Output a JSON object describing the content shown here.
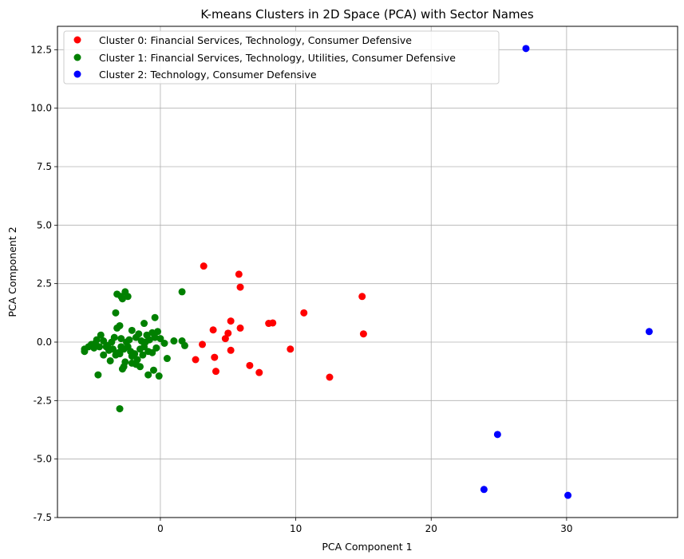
{
  "chart_data": {
    "type": "scatter",
    "title": "K-means Clusters in 2D Space (PCA) with Sector Names",
    "xlabel": "PCA Component 1",
    "ylabel": "PCA Component 2",
    "xlim": [
      -7.6,
      38.2
    ],
    "ylim": [
      -7.5,
      13.5
    ],
    "xticks": [
      0,
      10,
      20,
      30
    ],
    "yticks": [
      -7.5,
      -5.0,
      -2.5,
      0.0,
      2.5,
      5.0,
      7.5,
      10.0,
      12.5
    ],
    "grid": true,
    "legend_position": "top-left",
    "series": [
      {
        "name": "Cluster 0: Financial Services, Technology, Consumer Defensive",
        "color": "#ff0000",
        "points": [
          [
            3.2,
            3.25
          ],
          [
            5.8,
            2.9
          ],
          [
            5.9,
            2.35
          ],
          [
            14.9,
            1.95
          ],
          [
            10.6,
            1.25
          ],
          [
            8.3,
            0.82
          ],
          [
            8.0,
            0.8
          ],
          [
            5.2,
            0.9
          ],
          [
            5.9,
            0.6
          ],
          [
            3.9,
            0.52
          ],
          [
            5.0,
            0.38
          ],
          [
            15.0,
            0.35
          ],
          [
            4.8,
            0.15
          ],
          [
            3.1,
            -0.1
          ],
          [
            9.6,
            -0.3
          ],
          [
            5.2,
            -0.35
          ],
          [
            2.6,
            -0.75
          ],
          [
            4.0,
            -0.65
          ],
          [
            6.6,
            -1.0
          ],
          [
            4.1,
            -1.25
          ],
          [
            7.3,
            -1.3
          ],
          [
            12.5,
            -1.5
          ]
        ]
      },
      {
        "name": "Cluster 1: Financial Services, Technology, Utilities, Consumer Defensive",
        "color": "#008000",
        "points": [
          [
            -3.2,
            2.05
          ],
          [
            -2.6,
            2.15
          ],
          [
            -2.9,
            1.95
          ],
          [
            -2.4,
            1.95
          ],
          [
            -2.8,
            1.85
          ],
          [
            1.6,
            2.15
          ],
          [
            -3.3,
            1.25
          ],
          [
            -0.4,
            1.05
          ],
          [
            -3.0,
            0.7
          ],
          [
            -3.2,
            0.6
          ],
          [
            -1.2,
            0.8
          ],
          [
            -2.1,
            0.5
          ],
          [
            -1.6,
            0.35
          ],
          [
            -0.2,
            0.45
          ],
          [
            -4.4,
            0.3
          ],
          [
            -0.6,
            0.4
          ],
          [
            -1.0,
            0.3
          ],
          [
            -1.8,
            0.2
          ],
          [
            -3.4,
            0.2
          ],
          [
            -2.9,
            0.15
          ],
          [
            -4.7,
            0.1
          ],
          [
            -4.2,
            0.05
          ],
          [
            -3.6,
            0.0
          ],
          [
            -2.5,
            0.0
          ],
          [
            -1.4,
            0.05
          ],
          [
            -0.8,
            0.1
          ],
          [
            0.0,
            0.15
          ],
          [
            1.0,
            0.05
          ],
          [
            1.6,
            0.05
          ],
          [
            0.3,
            -0.05
          ],
          [
            -5.1,
            -0.1
          ],
          [
            -4.9,
            -0.25
          ],
          [
            -4.5,
            -0.2
          ],
          [
            -4.0,
            -0.2
          ],
          [
            -3.8,
            -0.35
          ],
          [
            -3.5,
            -0.3
          ],
          [
            -3.1,
            -0.45
          ],
          [
            -2.9,
            -0.2
          ],
          [
            -2.7,
            -0.3
          ],
          [
            -2.4,
            -0.2
          ],
          [
            -2.2,
            -0.4
          ],
          [
            -1.9,
            -0.5
          ],
          [
            -1.5,
            -0.3
          ],
          [
            -1.2,
            -0.2
          ],
          [
            -0.9,
            -0.4
          ],
          [
            -0.6,
            -0.45
          ],
          [
            -0.3,
            -0.25
          ],
          [
            1.8,
            -0.15
          ],
          [
            -5.6,
            -0.4
          ],
          [
            -5.3,
            -0.2
          ],
          [
            -4.2,
            -0.55
          ],
          [
            -3.3,
            -0.55
          ],
          [
            -3.0,
            -0.5
          ],
          [
            -2.1,
            -0.6
          ],
          [
            -1.7,
            -0.75
          ],
          [
            -1.3,
            -0.55
          ],
          [
            0.5,
            -0.7
          ],
          [
            -3.7,
            -0.8
          ],
          [
            -2.6,
            -0.85
          ],
          [
            -2.1,
            -0.9
          ],
          [
            -1.8,
            -0.95
          ],
          [
            -1.5,
            -1.05
          ],
          [
            -2.7,
            -1.05
          ],
          [
            -2.8,
            -1.15
          ],
          [
            -0.5,
            -1.2
          ],
          [
            -4.6,
            -1.4
          ],
          [
            -0.9,
            -1.4
          ],
          [
            -0.1,
            -1.45
          ],
          [
            -3.0,
            -2.85
          ],
          [
            -5.6,
            -0.3
          ],
          [
            -4.8,
            -0.05
          ],
          [
            -3.9,
            -0.15
          ],
          [
            -2.3,
            0.1
          ],
          [
            -1.1,
            0.0
          ],
          [
            -0.4,
            0.2
          ]
        ]
      },
      {
        "name": "Cluster 2: Technology, Consumer Defensive",
        "color": "#0000ff",
        "points": [
          [
            27.0,
            12.55
          ],
          [
            36.1,
            0.45
          ],
          [
            24.9,
            -3.95
          ],
          [
            23.9,
            -6.3
          ],
          [
            30.1,
            -6.55
          ]
        ]
      }
    ]
  }
}
